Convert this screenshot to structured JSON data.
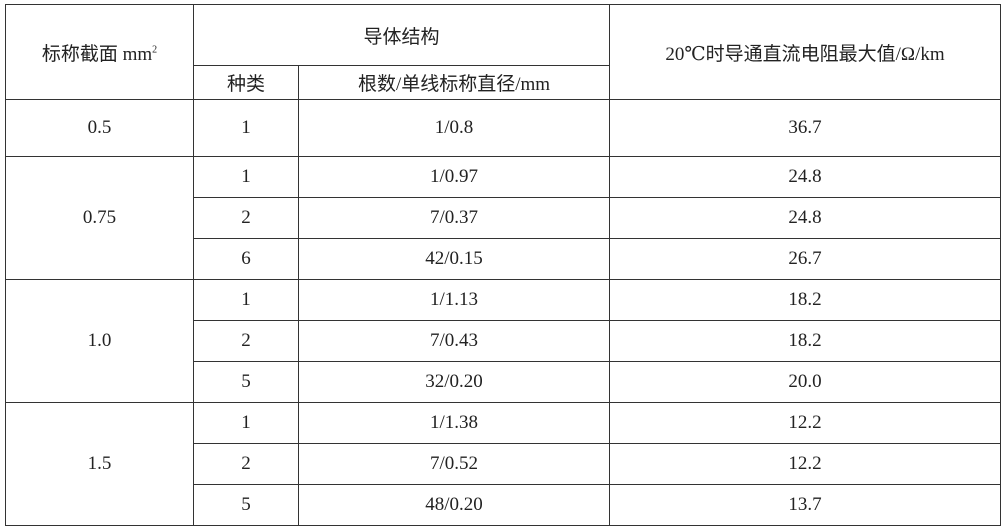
{
  "header": {
    "nominal_section": "标称截面 mm",
    "nominal_section_sup": "2",
    "conductor_structure": "导体结构",
    "type": "种类",
    "strands": "根数/单线标称直径/mm",
    "resistance": "20℃时导通直流电阻最大值/Ω/km"
  },
  "groups": [
    {
      "section": "0.5",
      "rows": [
        {
          "type": "1",
          "strands": "1/0.8",
          "resistance": "36.7"
        }
      ]
    },
    {
      "section": "0.75",
      "rows": [
        {
          "type": "1",
          "strands": "1/0.97",
          "resistance": "24.8"
        },
        {
          "type": "2",
          "strands": "7/0.37",
          "resistance": "24.8"
        },
        {
          "type": "6",
          "strands": "42/0.15",
          "resistance": "26.7"
        }
      ]
    },
    {
      "section": "1.0",
      "rows": [
        {
          "type": "1",
          "strands": "1/1.13",
          "resistance": "18.2"
        },
        {
          "type": "2",
          "strands": "7/0.43",
          "resistance": "18.2"
        },
        {
          "type": "5",
          "strands": "32/0.20",
          "resistance": "20.0"
        }
      ]
    },
    {
      "section": "1.5",
      "rows": [
        {
          "type": "1",
          "strands": "1/1.38",
          "resistance": "12.2"
        },
        {
          "type": "2",
          "strands": "7/0.52",
          "resistance": "12.2"
        },
        {
          "type": "5",
          "strands": "48/0.20",
          "resistance": "13.7"
        }
      ]
    }
  ]
}
